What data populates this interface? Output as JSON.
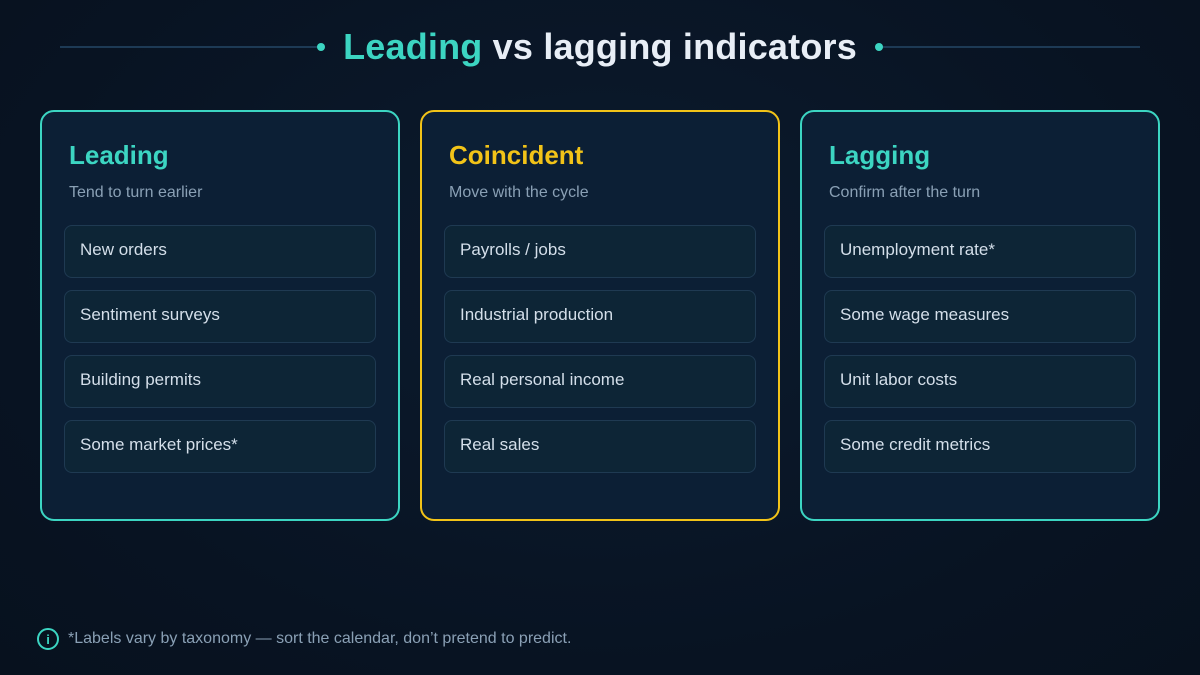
{
  "title": {
    "accent": "Leading",
    "rest": " vs lagging indicators"
  },
  "columns": [
    {
      "heading": "Leading",
      "subtitle": "Tend to turn earlier",
      "accent_color": "#3cd5c2",
      "items": [
        "New orders",
        "Sentiment surveys",
        "Building permits",
        "Some market prices*"
      ]
    },
    {
      "heading": "Coincident",
      "subtitle": "Move with the cycle",
      "accent_color": "#f2c318",
      "items": [
        "Payrolls / jobs",
        "Industrial production",
        "Real personal income",
        "Real sales"
      ]
    },
    {
      "heading": "Lagging",
      "subtitle": "Confirm after the turn",
      "accent_color": "#3cd5c2",
      "items": [
        "Unemployment rate*",
        "Some wage measures",
        "Unit labor costs",
        "Some credit metrics"
      ]
    }
  ],
  "footer": {
    "icon": "info-icon",
    "icon_glyph": "i",
    "note": "*Labels vary by taxonomy — sort the calendar, don’t pretend to predict."
  }
}
